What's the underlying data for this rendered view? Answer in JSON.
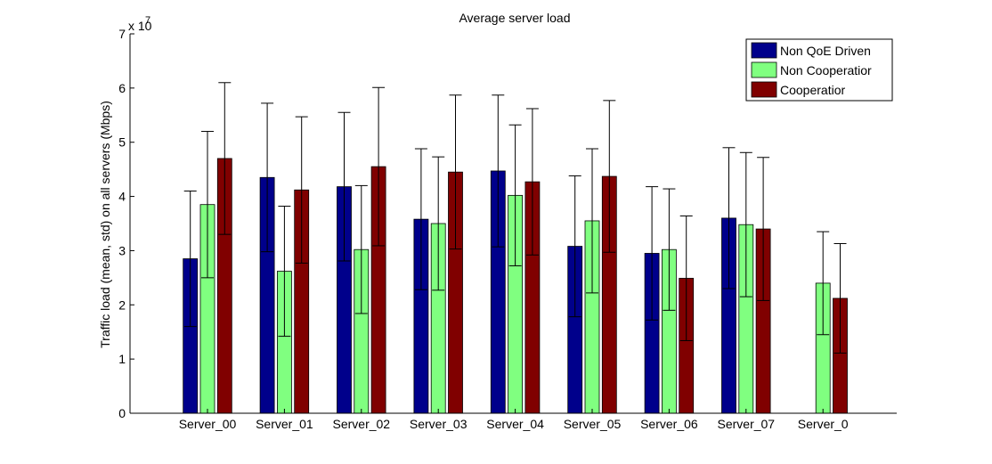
{
  "chart_data": {
    "type": "bar",
    "title": "Average server load",
    "xlabel": "",
    "ylabel": "Traffic load (mean, std) on all servers (Mbps)",
    "y_exponent_label": "x 10",
    "y_exponent": "7",
    "ylim": [
      0,
      7
    ],
    "yticks": [
      "0",
      "1",
      "2",
      "3",
      "4",
      "5",
      "6",
      "7"
    ],
    "categories": [
      "Server_00",
      "Server_01",
      "Server_02",
      "Server_03",
      "Server_04",
      "Server_05",
      "Server_06",
      "Server_07",
      "Server_08"
    ],
    "category_labels_as_shown": [
      "Server_00",
      "Server_01",
      "Server_02",
      "Server_03",
      "Server_04",
      "Server_05",
      "Server_06",
      "Server_07",
      "Server_0"
    ],
    "legend_position": "top-right",
    "grid": false,
    "series": [
      {
        "name": "Non QoE Driven",
        "legend_label": "Non QoE Driven",
        "color": "#00008b",
        "values": [
          2.85,
          4.35,
          4.18,
          3.58,
          4.47,
          3.08,
          2.95,
          3.6,
          0
        ],
        "std": [
          1.25,
          1.37,
          1.37,
          1.3,
          1.4,
          1.3,
          1.23,
          1.3,
          0
        ]
      },
      {
        "name": "Non Cooperation",
        "legend_label": "Non Cooperatior",
        "color": "#80ff80",
        "values": [
          3.85,
          2.62,
          3.02,
          3.5,
          4.02,
          3.55,
          3.02,
          3.48,
          2.4
        ],
        "std": [
          1.35,
          1.2,
          1.18,
          1.23,
          1.3,
          1.33,
          1.12,
          1.33,
          0.95
        ]
      },
      {
        "name": "Cooperation",
        "legend_label": "Cooperatior",
        "color": "#800000",
        "values": [
          4.7,
          4.12,
          4.55,
          4.45,
          4.27,
          4.37,
          2.49,
          3.4,
          2.12
        ],
        "std": [
          1.4,
          1.35,
          1.46,
          1.42,
          1.35,
          1.4,
          1.15,
          1.32,
          1.01
        ]
      }
    ]
  }
}
